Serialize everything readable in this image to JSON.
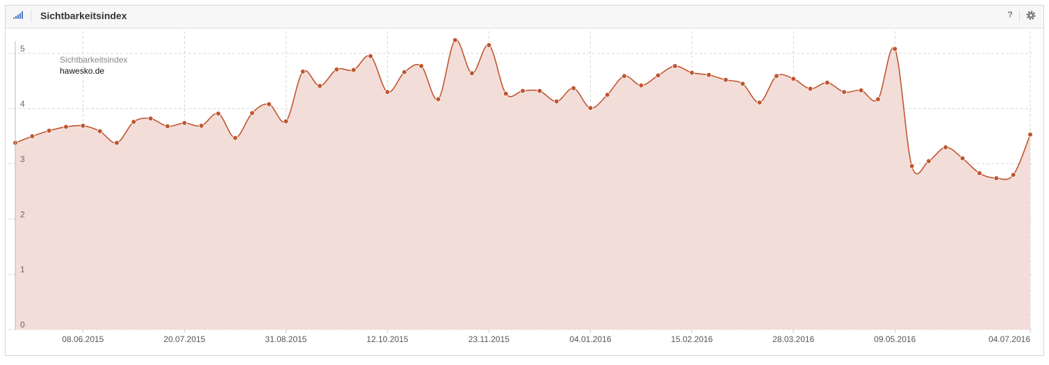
{
  "header": {
    "help": "?"
  },
  "chart_data": {
    "type": "area",
    "title": "Sichtbarkeitsindex",
    "legend_title": "Sichtbarkeitsindex",
    "categories": [
      null,
      null,
      null,
      null,
      "08.06.2015",
      null,
      null,
      null,
      null,
      null,
      "20.07.2015",
      null,
      null,
      null,
      null,
      null,
      "31.08.2015",
      null,
      null,
      null,
      null,
      null,
      "12.10.2015",
      null,
      null,
      null,
      null,
      null,
      "23.11.2015",
      null,
      null,
      null,
      null,
      null,
      "04.01.2016",
      null,
      null,
      null,
      null,
      null,
      "15.02.2016",
      null,
      null,
      null,
      null,
      null,
      "28.03.2016",
      null,
      null,
      null,
      null,
      null,
      "09.05.2016",
      null,
      null,
      null,
      null,
      null,
      null,
      null,
      "04.07.2016"
    ],
    "series": [
      {
        "name": "hawesko.de",
        "color": "#c0552f",
        "fill_color": "#f2ddd8",
        "values": [
          3.38,
          3.5,
          3.6,
          3.67,
          3.69,
          3.59,
          3.38,
          3.76,
          3.82,
          3.68,
          3.74,
          3.69,
          3.91,
          3.47,
          3.92,
          4.08,
          3.77,
          4.67,
          4.41,
          4.71,
          4.7,
          4.95,
          4.3,
          4.66,
          4.77,
          4.17,
          5.24,
          4.64,
          5.15,
          4.27,
          4.32,
          4.32,
          4.13,
          4.37,
          4.01,
          4.25,
          4.59,
          4.42,
          4.6,
          4.77,
          4.65,
          4.61,
          4.52,
          4.45,
          4.11,
          4.59,
          4.54,
          4.36,
          4.47,
          4.3,
          4.33,
          4.17,
          5.08,
          2.96,
          3.05,
          3.3,
          3.1,
          2.83,
          2.74,
          2.8,
          3.53
        ]
      }
    ],
    "ylim": [
      0,
      5.4
    ],
    "yticks": [
      0,
      1,
      2,
      3,
      4,
      5
    ],
    "grid": true
  }
}
